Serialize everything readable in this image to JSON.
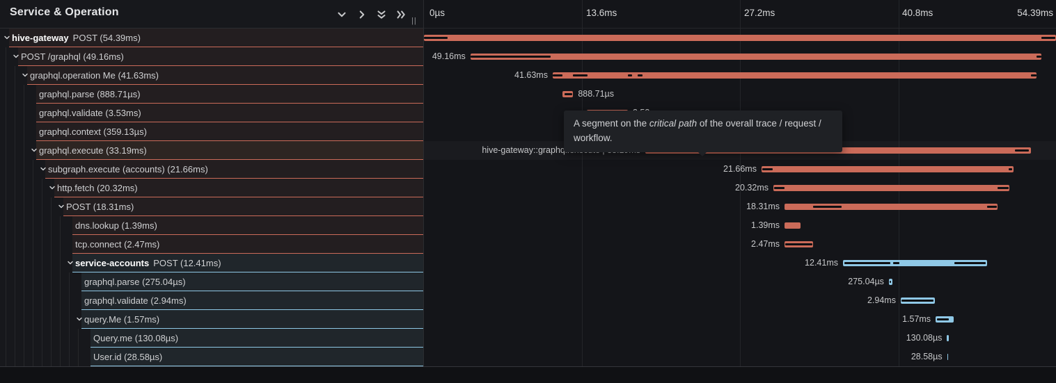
{
  "panel": {
    "title": "Service & Operation"
  },
  "toolbar": {
    "collapse_one": "collapse +1",
    "expand_one": "expand +1",
    "collapse_all": "collapse all",
    "expand_all": "expand all"
  },
  "resize_handle": "||",
  "ticks": [
    {
      "label": "0µs",
      "ms": 0
    },
    {
      "label": "13.6ms",
      "ms": 13.6
    },
    {
      "label": "27.2ms",
      "ms": 27.2
    },
    {
      "label": "40.8ms",
      "ms": 40.8
    },
    {
      "label": "54.39ms",
      "ms": 54.39
    }
  ],
  "tooltip": {
    "pre": "A segment on the ",
    "em": "critical path",
    "post": " of the overall trace / request / workflow."
  },
  "colors": {
    "span_orange": "#cb6b59",
    "span_blue": "#8fc8e6",
    "critical_path": "#0e0f12",
    "hover_row": "#2d2522"
  },
  "trace_total": "54.39ms",
  "spans": [
    {
      "depth": 0,
      "service": "hive-gateway",
      "label": "POST (54.39ms)",
      "chevron": true,
      "color": "orange",
      "start_ms": 0,
      "dur_ms": 54.39,
      "time": null,
      "side": null,
      "blacks": [
        [
          0,
          0.037
        ],
        [
          0.977,
          0.999
        ]
      ]
    },
    {
      "depth": 1,
      "label": "POST /graphql (49.16ms)",
      "chevron": true,
      "color": "orange",
      "start_ms": 4.0,
      "dur_ms": 49.16,
      "time": "49.16ms",
      "side": "left",
      "blacks": [
        [
          0,
          0.14
        ],
        [
          0.991,
          1
        ]
      ]
    },
    {
      "depth": 2,
      "label": "graphql.operation Me (41.63ms)",
      "chevron": true,
      "color": "orange",
      "start_ms": 11.08,
      "dur_ms": 41.63,
      "time": "41.63ms",
      "side": "left",
      "blacks": [
        [
          0,
          0.02
        ],
        [
          0.042,
          0.072
        ],
        [
          0.155,
          0.164
        ],
        [
          0.176,
          0.186
        ],
        [
          0.988,
          1
        ]
      ]
    },
    {
      "depth": 3,
      "label": "graphql.parse (888.71µs)",
      "chevron": false,
      "color": "orange",
      "start_ms": 11.95,
      "dur_ms": 0.889,
      "time": "888.71µs",
      "side": "right",
      "blacks": [
        [
          0.14,
          0.88
        ]
      ]
    },
    {
      "depth": 3,
      "label": "graphql.validate (3.53ms)",
      "chevron": false,
      "color": "orange",
      "start_ms": 14.02,
      "dur_ms": 3.53,
      "time": "3.53ms",
      "side": "right",
      "blacks": []
    },
    {
      "depth": 3,
      "label": "graphql.context (359.13µs)",
      "chevron": false,
      "color": "orange",
      "start_ms": 17.75,
      "dur_ms": 0.359,
      "time": "359.13µs",
      "side": "right",
      "blacks": []
    },
    {
      "depth": 3,
      "label": "graphql.execute (33.19ms)",
      "chevron": true,
      "color": "orange",
      "start_ms": 19.05,
      "dur_ms": 33.19,
      "time": "hive-gateway::graphql.execute | 33.19ms",
      "side": "left",
      "hover": true,
      "blacks": [
        [
          0,
          0.298
        ],
        [
          0.958,
          0.995
        ]
      ]
    },
    {
      "depth": 4,
      "label": "subgraph.execute (accounts) (21.66ms)",
      "chevron": true,
      "color": "orange",
      "start_ms": 29.05,
      "dur_ms": 21.66,
      "time": "21.66ms",
      "side": "left",
      "blacks": [
        [
          0.003,
          0.045
        ],
        [
          0.982,
          0.995
        ]
      ]
    },
    {
      "depth": 5,
      "label": "http.fetch (20.32ms)",
      "chevron": true,
      "color": "orange",
      "start_ms": 30.07,
      "dur_ms": 20.32,
      "time": "20.32ms",
      "side": "left",
      "blacks": [
        [
          0.003,
          0.047
        ],
        [
          0.95,
          0.997
        ]
      ]
    },
    {
      "depth": 6,
      "label": "POST (18.31ms)",
      "chevron": true,
      "color": "orange",
      "start_ms": 31.03,
      "dur_ms": 18.31,
      "time": "18.31ms",
      "side": "left",
      "blacks": [
        [
          0.134,
          0.268
        ],
        [
          0.952,
          0.998
        ]
      ]
    },
    {
      "depth": 7,
      "label": "dns.lookup (1.39ms)",
      "chevron": false,
      "color": "orange",
      "start_ms": 31.03,
      "dur_ms": 1.39,
      "time": "1.39ms",
      "side": "left",
      "blacks": []
    },
    {
      "depth": 7,
      "label": "tcp.connect (2.47ms)",
      "chevron": false,
      "color": "orange",
      "start_ms": 31.03,
      "dur_ms": 2.47,
      "time": "2.47ms",
      "side": "left",
      "blacks": [
        [
          0.03,
          0.97
        ]
      ]
    },
    {
      "depth": 7,
      "service": "service-accounts",
      "label": "POST (12.41ms)",
      "chevron": true,
      "color": "blue",
      "start_ms": 36.06,
      "dur_ms": 12.41,
      "time": "12.41ms",
      "side": "left",
      "blacks": [
        [
          0.01,
          0.33
        ],
        [
          0.35,
          0.39
        ],
        [
          0.77,
          0.99
        ]
      ]
    },
    {
      "depth": 8,
      "label": "graphql.parse (275.04µs)",
      "chevron": false,
      "color": "blue",
      "start_ms": 40.01,
      "dur_ms": 0.275,
      "time": "275.04µs",
      "side": "left",
      "blacks": [
        [
          0.2,
          0.65
        ]
      ]
    },
    {
      "depth": 8,
      "label": "graphql.validate (2.94ms)",
      "chevron": false,
      "color": "blue",
      "start_ms": 41.03,
      "dur_ms": 2.94,
      "time": "2.94ms",
      "side": "left",
      "blacks": [
        [
          0.02,
          0.96
        ]
      ]
    },
    {
      "depth": 8,
      "label": "query.Me (1.57ms)",
      "chevron": true,
      "color": "blue",
      "start_ms": 44.03,
      "dur_ms": 1.57,
      "time": "1.57ms",
      "side": "left",
      "blacks": [
        [
          0.07,
          0.72
        ]
      ]
    },
    {
      "depth": 9,
      "label": "Query.me (130.08µs)",
      "chevron": false,
      "color": "blue",
      "start_ms": 45.01,
      "dur_ms": 0.13,
      "time": "130.08µs",
      "side": "left",
      "blacks": []
    },
    {
      "depth": 9,
      "label": "User.id (28.58µs)",
      "chevron": false,
      "color": "blue",
      "start_ms": 45.02,
      "dur_ms": 0.0286,
      "time": "28.58µs",
      "side": "left",
      "blacks": []
    }
  ]
}
